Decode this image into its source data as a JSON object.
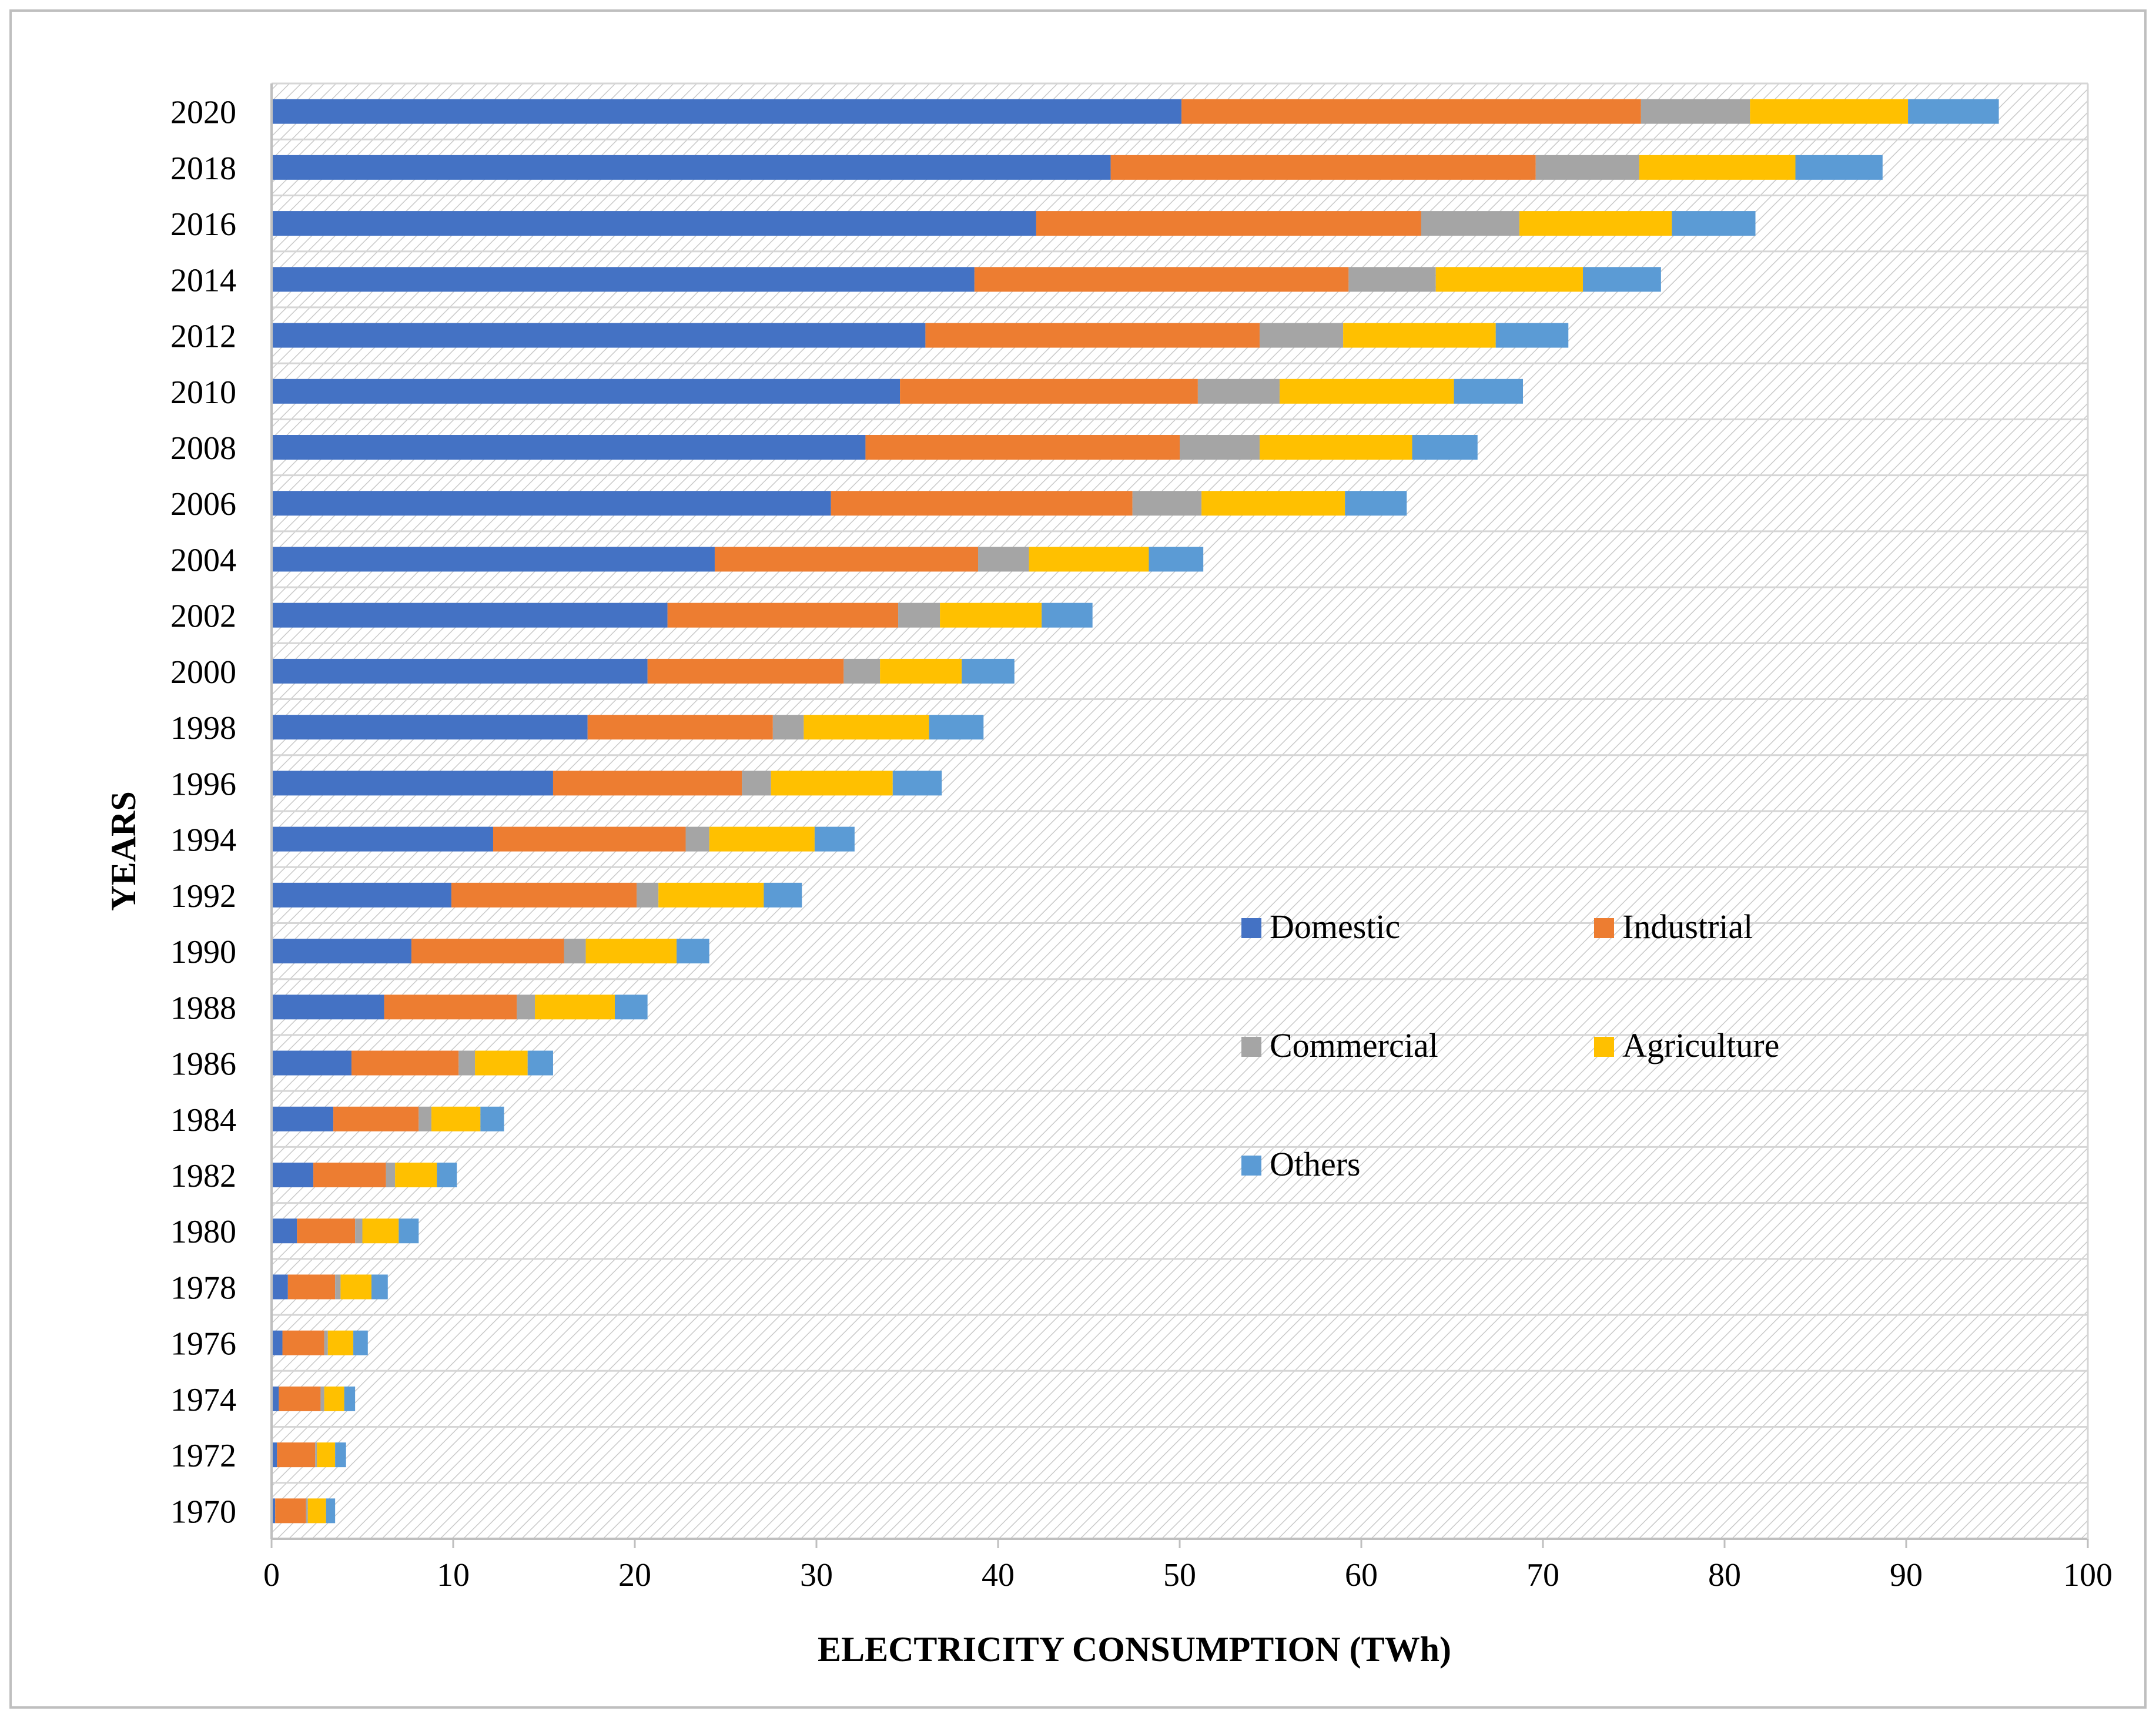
{
  "chart_data": {
    "type": "bar",
    "orientation": "horizontal",
    "stacked": true,
    "title": "",
    "xlabel": "ELECTRICITY CONSUMPTION (TWh)",
    "ylabel": "YEARS",
    "xlim": [
      0,
      100
    ],
    "x_ticks": [
      0,
      10,
      20,
      30,
      40,
      50,
      60,
      70,
      80,
      90,
      100
    ],
    "categories": [
      "1970",
      "1972",
      "1974",
      "1976",
      "1978",
      "1980",
      "1982",
      "1984",
      "1986",
      "1988",
      "1990",
      "1992",
      "1994",
      "1996",
      "1998",
      "2000",
      "2002",
      "2004",
      "2006",
      "2008",
      "2010",
      "2012",
      "2014",
      "2016",
      "2018",
      "2020"
    ],
    "series": [
      {
        "name": "Domestic",
        "color": "#4472C4",
        "values": [
          0.2,
          0.3,
          0.4,
          0.6,
          0.9,
          1.4,
          2.3,
          3.4,
          4.4,
          6.2,
          7.7,
          9.9,
          12.2,
          15.5,
          17.4,
          20.7,
          21.8,
          24.4,
          30.8,
          32.7,
          34.6,
          36.0,
          38.7,
          42.1,
          46.2,
          50.1
        ]
      },
      {
        "name": "Industrial",
        "color": "#ED7D31",
        "values": [
          1.7,
          2.1,
          2.3,
          2.3,
          2.6,
          3.2,
          4.0,
          4.7,
          5.9,
          7.3,
          8.4,
          10.2,
          10.6,
          10.4,
          10.2,
          10.8,
          12.7,
          14.5,
          16.6,
          17.3,
          16.4,
          18.4,
          20.6,
          21.2,
          23.4,
          25.3
        ]
      },
      {
        "name": "Commercial",
        "color": "#A5A5A5",
        "values": [
          0.1,
          0.1,
          0.2,
          0.2,
          0.3,
          0.4,
          0.5,
          0.7,
          0.9,
          1.0,
          1.2,
          1.2,
          1.3,
          1.6,
          1.7,
          2.0,
          2.3,
          2.8,
          3.8,
          4.4,
          4.5,
          4.6,
          4.8,
          5.4,
          5.7,
          6.0
        ]
      },
      {
        "name": "Agriculture",
        "color": "#FFC000",
        "values": [
          1.0,
          1.0,
          1.1,
          1.4,
          1.7,
          2.0,
          2.3,
          2.7,
          2.9,
          4.4,
          5.0,
          5.8,
          5.8,
          6.7,
          6.9,
          4.5,
          5.6,
          6.6,
          7.9,
          8.4,
          9.6,
          8.4,
          8.1,
          8.4,
          8.6,
          8.7
        ]
      },
      {
        "name": "Others",
        "color": "#5B9BD5",
        "values": [
          0.5,
          0.6,
          0.6,
          0.8,
          0.9,
          1.1,
          1.1,
          1.3,
          1.4,
          1.8,
          1.8,
          2.1,
          2.2,
          2.7,
          3.0,
          2.9,
          2.8,
          3.0,
          3.4,
          3.6,
          3.8,
          4.0,
          4.3,
          4.6,
          4.8,
          5.0
        ]
      }
    ]
  }
}
